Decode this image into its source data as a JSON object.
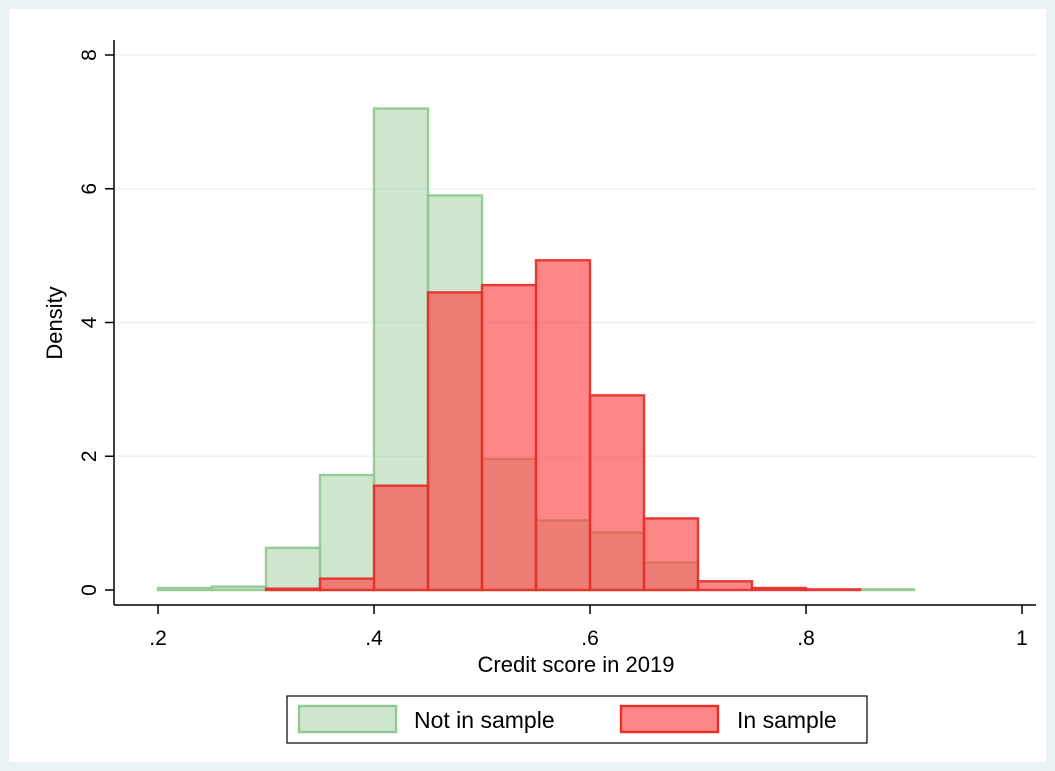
{
  "chart_data": {
    "type": "bar",
    "subtype": "overlaid histogram",
    "xlabel": "Credit score in 2019",
    "ylabel": "Density",
    "xlim": [
      0.2,
      1.0
    ],
    "ylim": [
      0,
      8
    ],
    "bin_width": 0.05,
    "grid": "horizontal",
    "legend_position": "bottom",
    "x_ticks": [
      {
        "value": 0.2,
        "label": ".2"
      },
      {
        "value": 0.4,
        "label": ".4"
      },
      {
        "value": 0.6,
        "label": ".6"
      },
      {
        "value": 0.8,
        "label": ".8"
      },
      {
        "value": 1.0,
        "label": "1"
      }
    ],
    "y_ticks": [
      {
        "value": 0,
        "label": "0"
      },
      {
        "value": 2,
        "label": "2"
      },
      {
        "value": 4,
        "label": "4"
      },
      {
        "value": 6,
        "label": "6"
      },
      {
        "value": 8,
        "label": "8"
      }
    ],
    "series": [
      {
        "name": "Not in sample",
        "fill": "#a8d4a8",
        "stroke": "#92c992",
        "opacity": 0.55,
        "bins": [
          {
            "x0": 0.2,
            "x1": 0.25,
            "y": 0.03
          },
          {
            "x0": 0.25,
            "x1": 0.3,
            "y": 0.05
          },
          {
            "x0": 0.3,
            "x1": 0.35,
            "y": 0.63
          },
          {
            "x0": 0.35,
            "x1": 0.4,
            "y": 1.72
          },
          {
            "x0": 0.4,
            "x1": 0.45,
            "y": 7.2
          },
          {
            "x0": 0.45,
            "x1": 0.5,
            "y": 5.9
          },
          {
            "x0": 0.5,
            "x1": 0.55,
            "y": 1.96
          },
          {
            "x0": 0.55,
            "x1": 0.6,
            "y": 1.04
          },
          {
            "x0": 0.6,
            "x1": 0.65,
            "y": 0.86
          },
          {
            "x0": 0.65,
            "x1": 0.7,
            "y": 0.41
          },
          {
            "x0": 0.85,
            "x1": 0.9,
            "y": 0.01
          }
        ]
      },
      {
        "name": "In sample",
        "fill": "#ff3b3b",
        "stroke": "#e8302a",
        "opacity": 0.62,
        "bins": [
          {
            "x0": 0.3,
            "x1": 0.35,
            "y": 0.02
          },
          {
            "x0": 0.35,
            "x1": 0.4,
            "y": 0.17
          },
          {
            "x0": 0.4,
            "x1": 0.45,
            "y": 1.56
          },
          {
            "x0": 0.45,
            "x1": 0.5,
            "y": 4.45
          },
          {
            "x0": 0.5,
            "x1": 0.55,
            "y": 4.56
          },
          {
            "x0": 0.55,
            "x1": 0.6,
            "y": 4.93
          },
          {
            "x0": 0.6,
            "x1": 0.65,
            "y": 2.91
          },
          {
            "x0": 0.65,
            "x1": 0.7,
            "y": 1.07
          },
          {
            "x0": 0.7,
            "x1": 0.75,
            "y": 0.13
          },
          {
            "x0": 0.75,
            "x1": 0.8,
            "y": 0.03
          },
          {
            "x0": 0.8,
            "x1": 0.85,
            "y": 0.01
          }
        ]
      }
    ],
    "colors": {
      "outer_background": "#eaf2f3",
      "plot_background": "#ffffff",
      "gridline": "#eaf2f3",
      "axis": "#000000"
    }
  }
}
